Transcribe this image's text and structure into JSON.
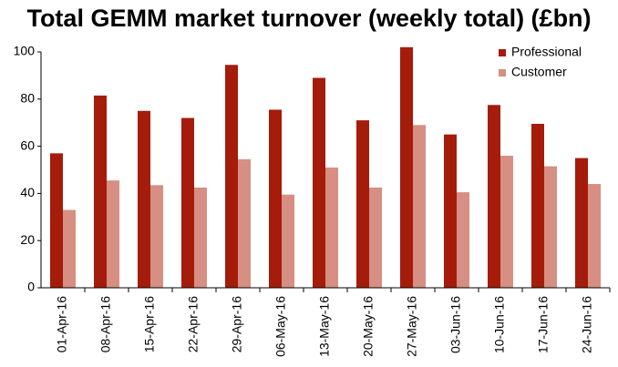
{
  "chart_data": {
    "type": "bar",
    "title": "Total GEMM market turnover (weekly total) (£bn)",
    "categories": [
      "01-Apr-16",
      "08-Apr-16",
      "15-Apr-16",
      "22-Apr-16",
      "29-Apr-16",
      "06-May-16",
      "13-May-16",
      "20-May-16",
      "27-May-16",
      "03-Jun-16",
      "10-Jun-16",
      "17-Jun-16",
      "24-Jun-16"
    ],
    "series": [
      {
        "name": "Professional",
        "color": "#a51c0b",
        "values": [
          57,
          81.5,
          75,
          72,
          94.5,
          75.5,
          89,
          71,
          102,
          65,
          77.5,
          69.5,
          55
        ]
      },
      {
        "name": "Customer",
        "color": "#d68f82",
        "values": [
          33,
          45.5,
          43.5,
          42.5,
          54.5,
          39.5,
          51,
          42.5,
          69,
          40.5,
          56,
          51.5,
          44
        ]
      }
    ],
    "ylim": [
      0,
      100
    ],
    "yticks": [
      0,
      20,
      40,
      60,
      80,
      100
    ],
    "legend": "upper right",
    "grid": false
  }
}
